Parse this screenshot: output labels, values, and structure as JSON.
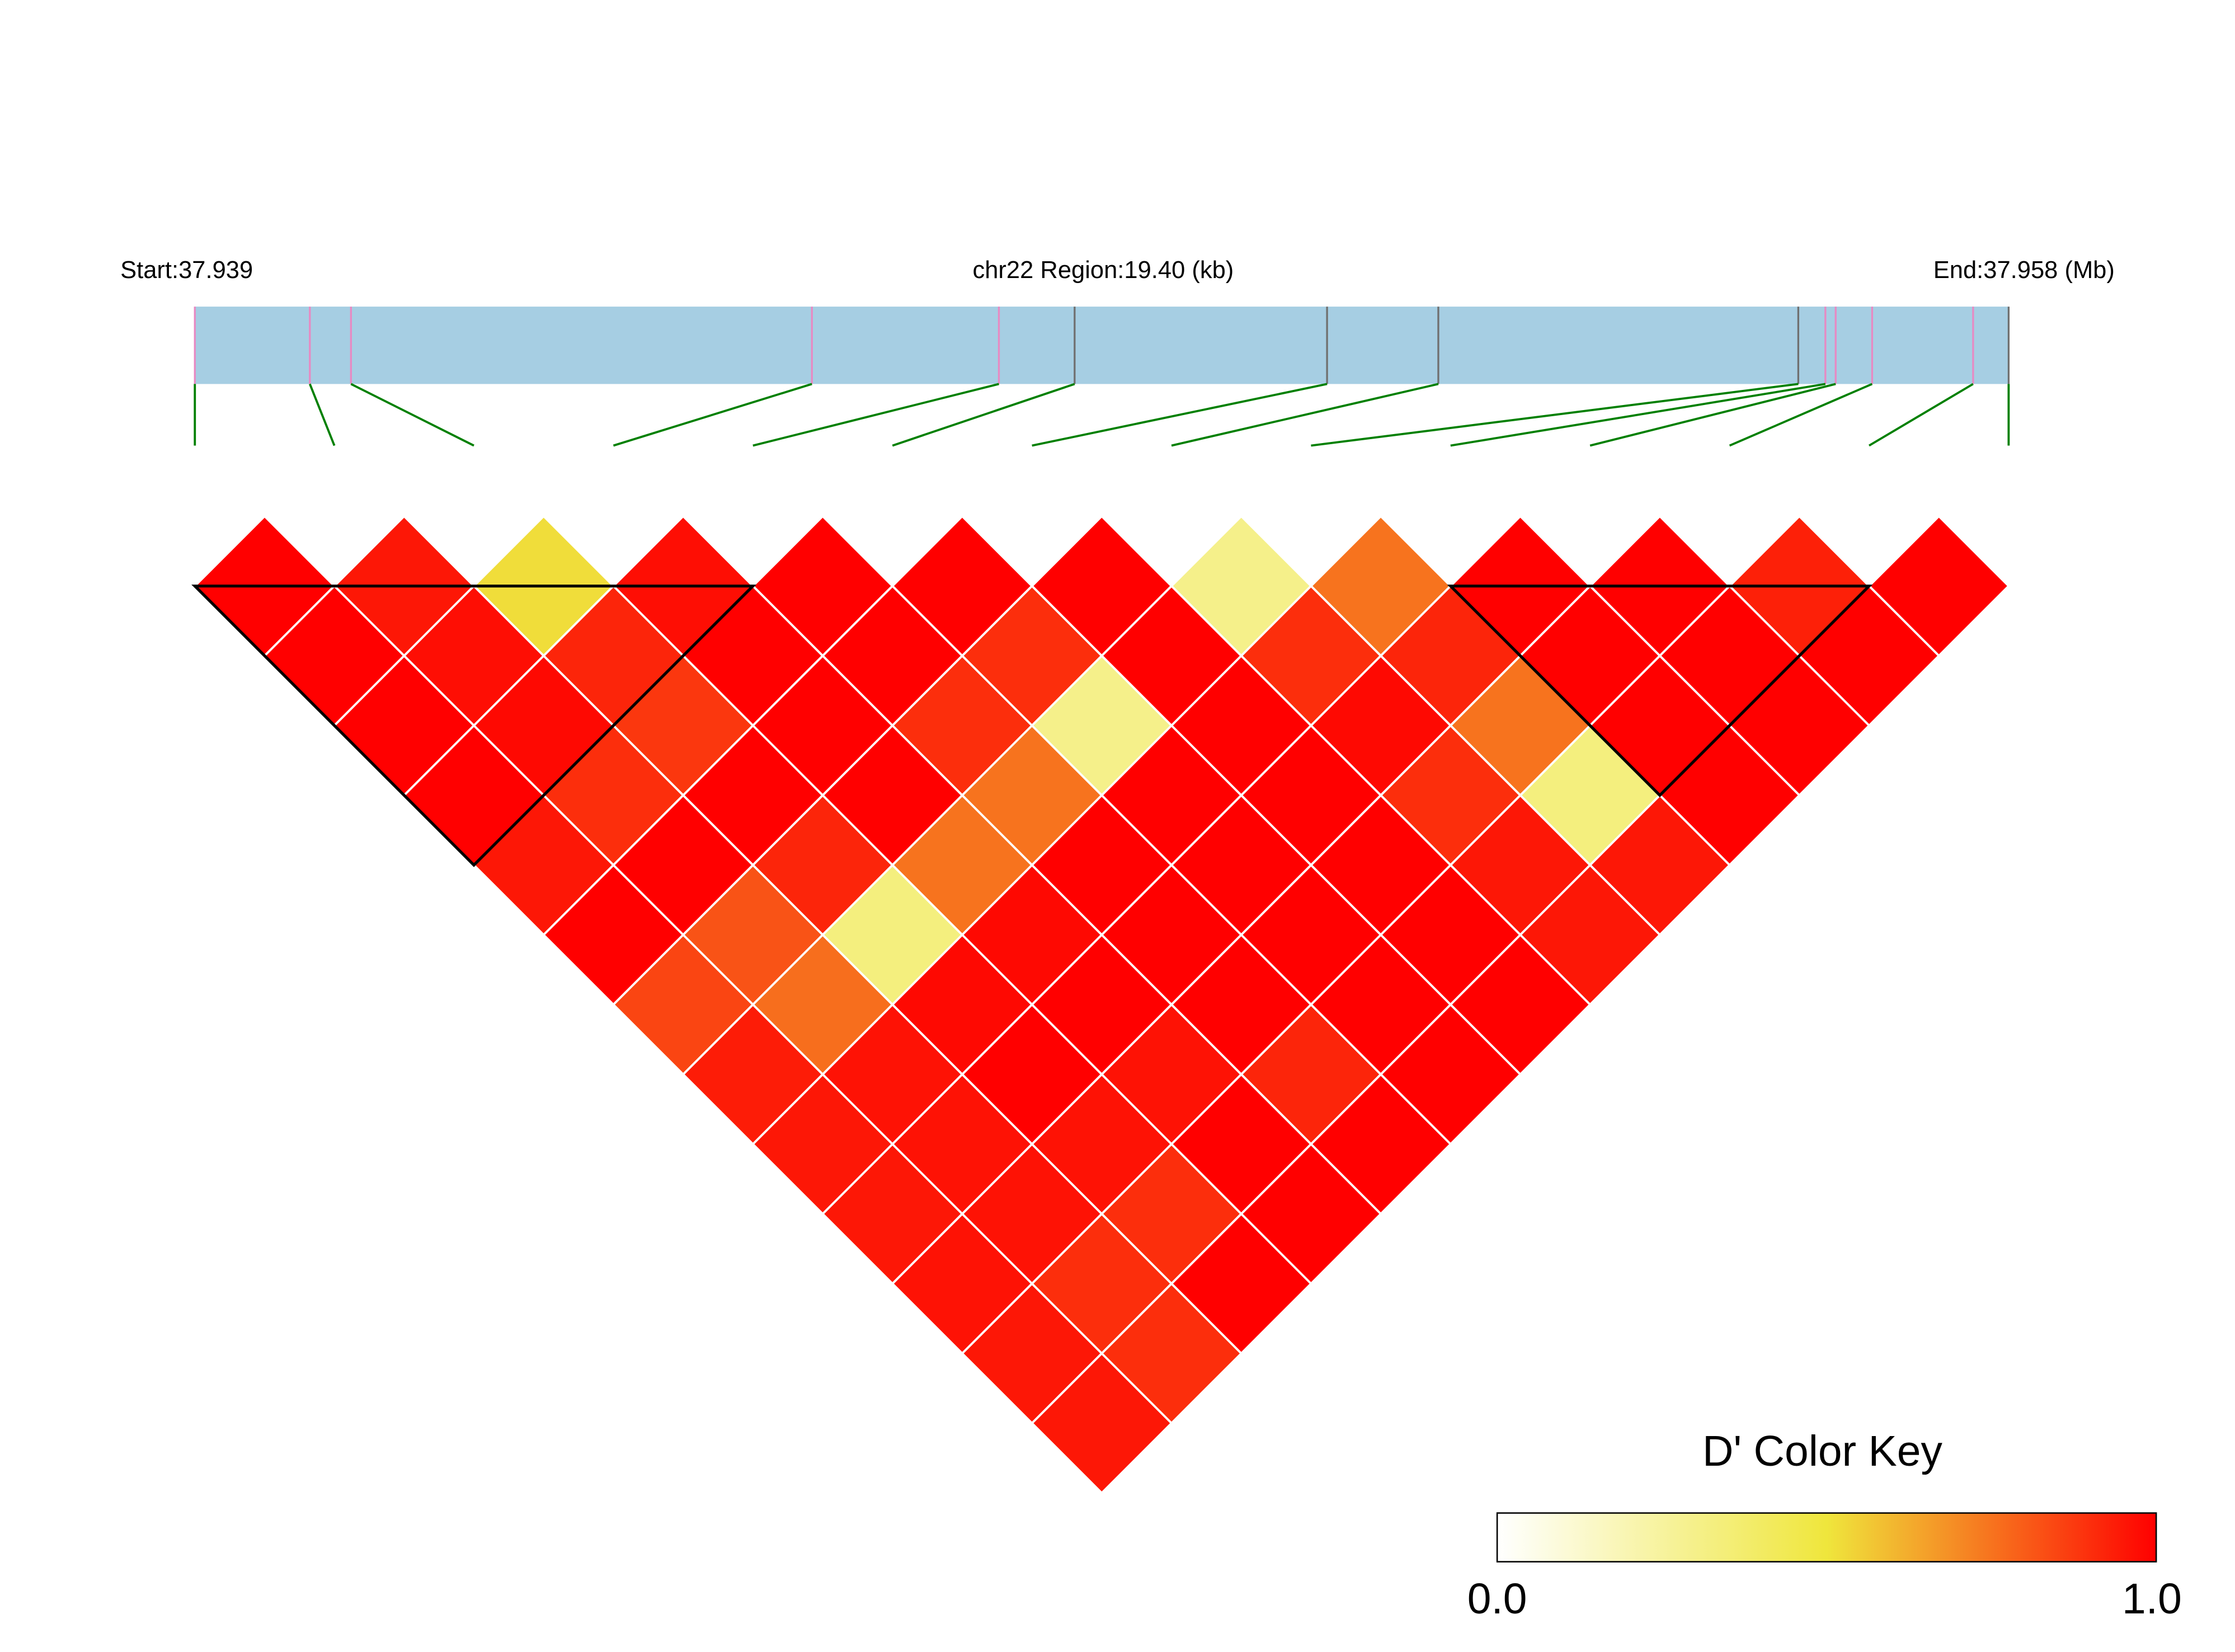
{
  "chart_data": {
    "type": "heatmap",
    "subtype": "LD triangle heatmap",
    "genetic_map": {
      "start_label": "Start:37.939",
      "region_label": "chr22 Region:19.40 (kb)",
      "end_label": "End:37.958 (Mb)",
      "region_kb": 19.4,
      "snp_positions_kb": [
        0,
        1.23,
        1.67,
        6.6,
        8.6,
        9.41,
        12.11,
        13.3,
        17.15,
        17.44,
        17.55,
        17.94,
        19.02,
        19.4
      ],
      "marker_colors": [
        "#E78AC3",
        "#E78AC3",
        "#E78AC3",
        "#E78AC3",
        "#E78AC3",
        "#707070",
        "#707070",
        "#707070",
        "#707070",
        "#E78AC3",
        "#E78AC3",
        "#E78AC3",
        "#E78AC3",
        "#707070"
      ],
      "bar_color": "#A6CEE3",
      "connector_color": "#008000"
    },
    "n_snps": 14,
    "dprime_by_offset": [
      [
        1,
        0.95,
        0.52,
        0.97,
        1,
        1,
        1,
        0.3,
        0.75,
        1,
        1,
        0.93,
        1
      ],
      [
        1,
        0.97,
        0.92,
        1,
        1,
        0.9,
        1,
        0.9,
        0.92,
        1,
        1,
        1
      ],
      [
        1,
        0.98,
        0.88,
        1,
        0.9,
        0.3,
        1,
        0.98,
        0.75,
        1,
        1
      ],
      [
        1,
        0.9,
        1,
        1,
        0.75,
        1,
        1,
        0.9,
        0.33,
        1
      ],
      [
        0.95,
        1,
        0.92,
        0.75,
        1,
        1,
        1,
        0.95,
        0.95
      ],
      [
        1,
        0.82,
        0.33,
        0.98,
        1,
        1,
        1,
        0.95
      ],
      [
        0.85,
        0.76,
        0.98,
        1,
        1,
        1,
        1
      ],
      [
        0.94,
        0.96,
        1,
        0.96,
        0.92,
        1
      ],
      [
        0.95,
        0.96,
        0.96,
        1,
        1
      ],
      [
        0.95,
        0.96,
        0.9,
        1
      ],
      [
        0.96,
        0.9,
        1
      ],
      [
        0.95,
        0.9
      ],
      [
        0.95
      ]
    ],
    "blocks": [
      [
        0,
        4
      ],
      [
        9,
        12
      ]
    ],
    "color_key": {
      "title": "D' Color Key",
      "min_label": "0.0",
      "max_label": "1.0",
      "range": [
        0,
        1
      ],
      "colors": [
        "#FFFFFF",
        "#EFE63C",
        "#FF0000"
      ]
    }
  }
}
